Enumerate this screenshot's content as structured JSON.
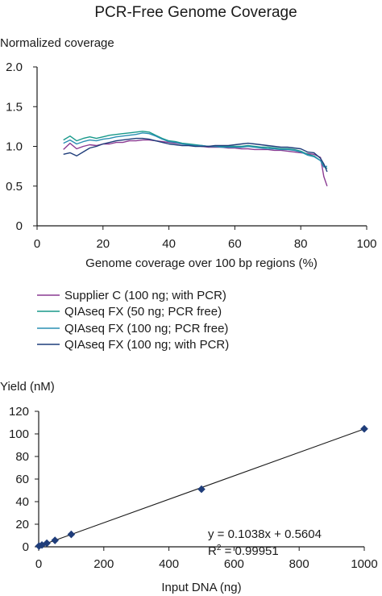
{
  "colors": {
    "supplier_c": "#8a3a92",
    "qiaseq_50_pcr_free": "#18998a",
    "qiaseq_100_pcr_free": "#2a8fb3",
    "qiaseq_100_with_pcr": "#1f3d7a",
    "axis": "#1a1a1a",
    "fit_line": "#1a1a1a",
    "marker": "#1f3d7a"
  },
  "chart_data": [
    {
      "type": "line",
      "title": "PCR-Free Genome Coverage",
      "ylabel": "Normalized coverage",
      "xlabel": "Genome coverage over 100 bp regions (%)",
      "xlim": [
        0,
        100
      ],
      "ylim": [
        0,
        2.0
      ],
      "x_ticks": [
        "0",
        "20",
        "40",
        "60",
        "80",
        "100"
      ],
      "y_ticks": [
        "0",
        "0.5",
        "1.0",
        "1.5",
        "2.0"
      ],
      "grid": false,
      "legend_placement": "below",
      "x": [
        8,
        10,
        12,
        14,
        16,
        18,
        20,
        22,
        24,
        26,
        28,
        30,
        32,
        34,
        36,
        38,
        40,
        42,
        44,
        46,
        48,
        50,
        52,
        54,
        56,
        58,
        60,
        62,
        64,
        66,
        68,
        70,
        72,
        74,
        76,
        78,
        80,
        82,
        84,
        86,
        87,
        88
      ],
      "series": [
        {
          "name": "Supplier C (100 ng; with PCR)",
          "color_key": "supplier_c",
          "values": [
            0.96,
            1.04,
            0.97,
            1.0,
            1.02,
            1.01,
            1.03,
            1.03,
            1.05,
            1.05,
            1.07,
            1.07,
            1.08,
            1.08,
            1.07,
            1.06,
            1.05,
            1.04,
            1.03,
            1.02,
            1.01,
            1.0,
            0.99,
            0.99,
            0.99,
            0.98,
            0.98,
            0.97,
            0.97,
            0.96,
            0.96,
            0.96,
            0.95,
            0.95,
            0.94,
            0.93,
            0.92,
            0.91,
            0.9,
            0.86,
            0.62,
            0.5
          ]
        },
        {
          "name": "QIAseq FX (50 ng; PCR free)",
          "color_key": "qiaseq_50_pcr_free",
          "values": [
            1.08,
            1.13,
            1.07,
            1.1,
            1.12,
            1.1,
            1.12,
            1.14,
            1.15,
            1.16,
            1.17,
            1.18,
            1.19,
            1.18,
            1.14,
            1.1,
            1.07,
            1.06,
            1.04,
            1.03,
            1.02,
            1.01,
            1.0,
            1.0,
            1.0,
            1.0,
            1.0,
            1.0,
            1.01,
            1.0,
            0.99,
            0.99,
            0.98,
            0.97,
            0.97,
            0.96,
            0.94,
            0.9,
            0.88,
            0.82,
            0.76,
            0.72
          ]
        },
        {
          "name": "QIAseq FX (100 ng; PCR free)",
          "color_key": "qiaseq_100_pcr_free",
          "values": [
            1.04,
            1.08,
            1.03,
            1.06,
            1.08,
            1.07,
            1.09,
            1.1,
            1.12,
            1.13,
            1.14,
            1.15,
            1.17,
            1.16,
            1.13,
            1.09,
            1.06,
            1.05,
            1.03,
            1.02,
            1.01,
            1.01,
            1.0,
            1.0,
            0.99,
            0.99,
            0.99,
            0.99,
            1.0,
            0.99,
            0.98,
            0.97,
            0.97,
            0.96,
            0.96,
            0.95,
            0.93,
            0.89,
            0.87,
            0.82,
            0.74,
            0.75
          ]
        },
        {
          "name": "QIAseq FX (100 ng; with PCR)",
          "color_key": "qiaseq_100_with_pcr",
          "values": [
            0.9,
            0.92,
            0.88,
            0.93,
            0.98,
            1.0,
            1.03,
            1.05,
            1.07,
            1.08,
            1.09,
            1.1,
            1.1,
            1.09,
            1.07,
            1.05,
            1.03,
            1.02,
            1.01,
            1.01,
            1.0,
            1.0,
            1.0,
            1.01,
            1.01,
            1.01,
            1.02,
            1.03,
            1.04,
            1.03,
            1.02,
            1.01,
            1.0,
            0.99,
            0.99,
            0.98,
            0.97,
            0.93,
            0.92,
            0.85,
            0.78,
            0.68
          ]
        }
      ]
    },
    {
      "type": "scatter",
      "title": "",
      "ylabel": "Yield (nM)",
      "xlabel": "Input DNA (ng)",
      "xlim": [
        0,
        1000
      ],
      "ylim": [
        0,
        120
      ],
      "x_ticks": [
        "0",
        "200",
        "400",
        "600",
        "800",
        "1000"
      ],
      "y_ticks": [
        "0",
        "20",
        "40",
        "60",
        "80",
        "100",
        "120"
      ],
      "grid": false,
      "points": [
        {
          "x": 1,
          "y": 0.7
        },
        {
          "x": 10,
          "y": 1.6
        },
        {
          "x": 25,
          "y": 3.2
        },
        {
          "x": 50,
          "y": 5.7
        },
        {
          "x": 100,
          "y": 11.0
        },
        {
          "x": 500,
          "y": 51.0
        },
        {
          "x": 1000,
          "y": 104.5
        }
      ],
      "fit": {
        "slope": 0.1038,
        "intercept": 0.5604,
        "equation_text": "y  = 0.1038x + 0.5604",
        "r2_prefix": "R",
        "r2_sup": "2",
        "r2_value": " = 0.99951"
      }
    }
  ]
}
